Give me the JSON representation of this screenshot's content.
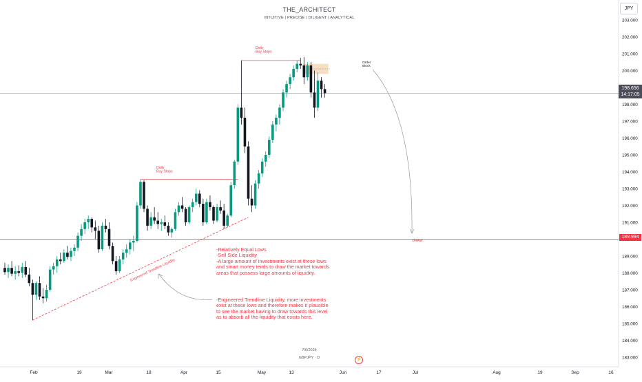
{
  "header": {
    "title": "THE_ARCHITECT",
    "subtitle": "INTUITIVE | PRECISE | DILIGENT | ANALYTICAL",
    "currency_button": "JPY"
  },
  "watermark": {
    "date": "7/6/2024",
    "symbol": "GBPJPY · D"
  },
  "price_axis": {
    "ticks": [
      "183.000",
      "184.000",
      "185.000",
      "186.000",
      "187.000",
      "188.000",
      "189.000",
      "190.000",
      "191.000",
      "192.000",
      "193.000",
      "194.000",
      "195.000",
      "196.000",
      "197.000",
      "198.000",
      "199.000",
      "200.000",
      "201.000",
      "202.000",
      "203.000"
    ],
    "current_price": "198.656",
    "countdown": "14:17:05",
    "draw_price": "189.994"
  },
  "annotations": {
    "daily_buy_stops_1": "Daily\nBuy Stops",
    "daily_buy_stops_2": "Daily\nBuy Stops",
    "order_block": "Order\nBlock",
    "draw_label": "DRAW",
    "trendline_label": "Engineered Trendline Liquidity",
    "note_1": "-Relatively Equal Lows\n-Sell Side Liquidity\n-A large amount of investments exist at these lows\nand smart money tends to draw the market towards\nareas that possess large amounts of liquidity.",
    "note_2": "-Engineered Trendline Liquidity, more investments\nexist at these lows and therefore makes it plausible\nto see the market having to draw towards this level\nas to absorb all the liquidity that exists here."
  },
  "colors": {
    "up": "#089981",
    "down": "#131722",
    "annotation": "#f23645",
    "order_block_fill": "#f5d9b8",
    "axis_text": "#131722",
    "grid_text": "#5d606b"
  },
  "chart_data": {
    "type": "candlestick",
    "symbol": "GBPJPY",
    "timeframe": "D",
    "x_ticks": [
      "Feb",
      "19",
      "Mar",
      "18",
      "Apr",
      "15",
      "May",
      "13",
      "Jun",
      "17",
      "Jul",
      "Aug",
      "19",
      "Sep",
      "16"
    ],
    "ylim": [
      182.8,
      203.7
    ],
    "levels": {
      "daily_buy_stops_high_1": 193.55,
      "daily_buy_stops_high_2": 200.6,
      "draw": 189.994,
      "current": 198.656,
      "order_block": [
        199.8,
        200.4
      ],
      "trendline_start": 185.2,
      "trendline_end": 191.3
    },
    "candles": [
      {
        "o": 188.3,
        "h": 188.6,
        "l": 187.9,
        "c": 188.05
      },
      {
        "o": 188.05,
        "h": 188.5,
        "l": 187.7,
        "c": 188.3
      },
      {
        "o": 188.3,
        "h": 188.7,
        "l": 187.8,
        "c": 187.95
      },
      {
        "o": 187.95,
        "h": 188.4,
        "l": 187.6,
        "c": 188.1
      },
      {
        "o": 188.1,
        "h": 188.45,
        "l": 187.8,
        "c": 188.0
      },
      {
        "o": 188.0,
        "h": 188.6,
        "l": 187.7,
        "c": 188.35
      },
      {
        "o": 188.35,
        "h": 188.7,
        "l": 187.75,
        "c": 187.9
      },
      {
        "o": 187.9,
        "h": 188.3,
        "l": 187.2,
        "c": 187.4
      },
      {
        "o": 187.4,
        "h": 187.6,
        "l": 185.2,
        "c": 186.7
      },
      {
        "o": 186.7,
        "h": 187.5,
        "l": 186.4,
        "c": 187.4
      },
      {
        "o": 187.4,
        "h": 187.8,
        "l": 186.4,
        "c": 186.6
      },
      {
        "o": 186.6,
        "h": 187.1,
        "l": 186.2,
        "c": 186.5
      },
      {
        "o": 186.5,
        "h": 187.3,
        "l": 186.3,
        "c": 187.0
      },
      {
        "o": 187.0,
        "h": 188.4,
        "l": 186.9,
        "c": 188.2
      },
      {
        "o": 188.2,
        "h": 188.6,
        "l": 187.9,
        "c": 188.4
      },
      {
        "o": 188.4,
        "h": 189.0,
        "l": 188.0,
        "c": 188.8
      },
      {
        "o": 188.8,
        "h": 189.2,
        "l": 188.5,
        "c": 188.7
      },
      {
        "o": 188.7,
        "h": 189.4,
        "l": 188.6,
        "c": 189.2
      },
      {
        "o": 189.2,
        "h": 189.6,
        "l": 188.8,
        "c": 188.95
      },
      {
        "o": 188.95,
        "h": 189.5,
        "l": 188.7,
        "c": 189.3
      },
      {
        "o": 189.3,
        "h": 189.7,
        "l": 189.0,
        "c": 189.5
      },
      {
        "o": 189.5,
        "h": 190.4,
        "l": 189.3,
        "c": 190.2
      },
      {
        "o": 190.2,
        "h": 190.9,
        "l": 189.9,
        "c": 190.6
      },
      {
        "o": 190.6,
        "h": 191.2,
        "l": 190.3,
        "c": 191.0
      },
      {
        "o": 191.0,
        "h": 191.4,
        "l": 190.6,
        "c": 191.2
      },
      {
        "o": 191.2,
        "h": 191.3,
        "l": 190.4,
        "c": 190.7
      },
      {
        "o": 190.7,
        "h": 191.1,
        "l": 190.0,
        "c": 190.5
      },
      {
        "o": 190.5,
        "h": 190.8,
        "l": 189.2,
        "c": 189.4
      },
      {
        "o": 189.4,
        "h": 191.0,
        "l": 189.3,
        "c": 190.8
      },
      {
        "o": 190.8,
        "h": 191.2,
        "l": 190.4,
        "c": 190.6
      },
      {
        "o": 190.6,
        "h": 191.0,
        "l": 189.4,
        "c": 189.6
      },
      {
        "o": 189.6,
        "h": 189.8,
        "l": 188.5,
        "c": 188.7
      },
      {
        "o": 188.7,
        "h": 189.0,
        "l": 187.9,
        "c": 188.1
      },
      {
        "o": 188.1,
        "h": 189.0,
        "l": 188.0,
        "c": 188.8
      },
      {
        "o": 188.8,
        "h": 189.4,
        "l": 188.5,
        "c": 189.2
      },
      {
        "o": 189.2,
        "h": 189.7,
        "l": 188.9,
        "c": 189.4
      },
      {
        "o": 189.4,
        "h": 190.0,
        "l": 189.1,
        "c": 189.8
      },
      {
        "o": 189.8,
        "h": 190.2,
        "l": 189.3,
        "c": 189.9
      },
      {
        "o": 189.9,
        "h": 192.2,
        "l": 189.8,
        "c": 192.0
      },
      {
        "o": 192.0,
        "h": 193.55,
        "l": 191.8,
        "c": 193.4
      },
      {
        "o": 193.4,
        "h": 193.5,
        "l": 191.6,
        "c": 191.8
      },
      {
        "o": 191.8,
        "h": 192.0,
        "l": 190.5,
        "c": 190.8
      },
      {
        "o": 190.8,
        "h": 191.6,
        "l": 190.6,
        "c": 191.3
      },
      {
        "o": 191.3,
        "h": 191.9,
        "l": 190.9,
        "c": 191.1
      },
      {
        "o": 191.1,
        "h": 191.6,
        "l": 190.6,
        "c": 190.9
      },
      {
        "o": 190.9,
        "h": 191.2,
        "l": 190.5,
        "c": 191.0
      },
      {
        "o": 191.0,
        "h": 191.4,
        "l": 190.6,
        "c": 190.8
      },
      {
        "o": 190.8,
        "h": 191.0,
        "l": 190.2,
        "c": 190.4
      },
      {
        "o": 190.4,
        "h": 190.7,
        "l": 190.1,
        "c": 190.6
      },
      {
        "o": 190.6,
        "h": 191.8,
        "l": 190.5,
        "c": 191.6
      },
      {
        "o": 191.6,
        "h": 192.2,
        "l": 191.4,
        "c": 192.0
      },
      {
        "o": 192.0,
        "h": 192.5,
        "l": 191.6,
        "c": 191.8
      },
      {
        "o": 191.8,
        "h": 191.9,
        "l": 190.8,
        "c": 191.0
      },
      {
        "o": 191.0,
        "h": 192.0,
        "l": 190.9,
        "c": 191.9
      },
      {
        "o": 191.9,
        "h": 192.4,
        "l": 191.6,
        "c": 192.2
      },
      {
        "o": 192.2,
        "h": 193.0,
        "l": 192.0,
        "c": 192.7
      },
      {
        "o": 192.7,
        "h": 192.9,
        "l": 191.9,
        "c": 192.1
      },
      {
        "o": 192.1,
        "h": 192.4,
        "l": 190.8,
        "c": 191.0
      },
      {
        "o": 191.0,
        "h": 192.4,
        "l": 190.9,
        "c": 192.2
      },
      {
        "o": 192.2,
        "h": 192.6,
        "l": 191.7,
        "c": 191.9
      },
      {
        "o": 191.9,
        "h": 192.0,
        "l": 190.9,
        "c": 191.1
      },
      {
        "o": 191.1,
        "h": 192.1,
        "l": 191.0,
        "c": 191.9
      },
      {
        "o": 191.9,
        "h": 192.3,
        "l": 191.5,
        "c": 191.7
      },
      {
        "o": 191.7,
        "h": 192.1,
        "l": 190.6,
        "c": 190.8
      },
      {
        "o": 190.8,
        "h": 191.5,
        "l": 190.7,
        "c": 191.4
      },
      {
        "o": 191.4,
        "h": 193.4,
        "l": 191.3,
        "c": 193.2
      },
      {
        "o": 193.2,
        "h": 194.7,
        "l": 193.0,
        "c": 194.6
      },
      {
        "o": 194.6,
        "h": 198.0,
        "l": 194.4,
        "c": 197.8
      },
      {
        "o": 197.8,
        "h": 200.6,
        "l": 196.8,
        "c": 197.2
      },
      {
        "o": 197.2,
        "h": 197.8,
        "l": 195.1,
        "c": 195.5
      },
      {
        "o": 195.5,
        "h": 195.8,
        "l": 192.0,
        "c": 192.4
      },
      {
        "o": 192.4,
        "h": 193.2,
        "l": 191.6,
        "c": 192.0
      },
      {
        "o": 192.0,
        "h": 193.5,
        "l": 191.8,
        "c": 193.3
      },
      {
        "o": 193.3,
        "h": 194.1,
        "l": 193.0,
        "c": 193.9
      },
      {
        "o": 193.9,
        "h": 194.8,
        "l": 193.7,
        "c": 194.6
      },
      {
        "o": 194.6,
        "h": 195.2,
        "l": 194.3,
        "c": 195.0
      },
      {
        "o": 195.0,
        "h": 196.1,
        "l": 194.8,
        "c": 195.9
      },
      {
        "o": 195.9,
        "h": 197.0,
        "l": 195.7,
        "c": 196.8
      },
      {
        "o": 196.8,
        "h": 197.4,
        "l": 196.4,
        "c": 197.2
      },
      {
        "o": 197.2,
        "h": 198.0,
        "l": 196.8,
        "c": 197.8
      },
      {
        "o": 197.8,
        "h": 198.9,
        "l": 197.6,
        "c": 198.7
      },
      {
        "o": 198.7,
        "h": 199.4,
        "l": 198.4,
        "c": 199.2
      },
      {
        "o": 199.2,
        "h": 199.8,
        "l": 198.9,
        "c": 199.6
      },
      {
        "o": 199.6,
        "h": 200.3,
        "l": 199.4,
        "c": 200.1
      },
      {
        "o": 200.1,
        "h": 200.6,
        "l": 199.9,
        "c": 200.4
      },
      {
        "o": 200.4,
        "h": 200.75,
        "l": 200.1,
        "c": 200.3
      },
      {
        "o": 200.3,
        "h": 200.8,
        "l": 199.2,
        "c": 199.6
      },
      {
        "o": 199.6,
        "h": 200.5,
        "l": 199.4,
        "c": 200.3
      },
      {
        "o": 200.3,
        "h": 200.5,
        "l": 198.4,
        "c": 198.7
      },
      {
        "o": 198.7,
        "h": 200.0,
        "l": 197.2,
        "c": 197.8
      },
      {
        "o": 197.8,
        "h": 199.9,
        "l": 197.6,
        "c": 199.4
      },
      {
        "o": 199.4,
        "h": 199.6,
        "l": 198.4,
        "c": 198.9
      },
      {
        "o": 198.9,
        "h": 199.2,
        "l": 198.4,
        "c": 198.656
      }
    ]
  }
}
